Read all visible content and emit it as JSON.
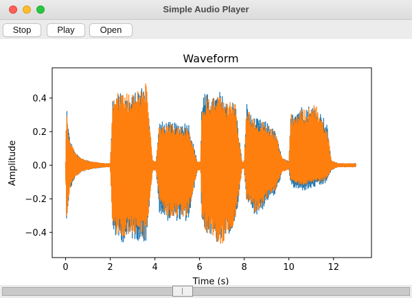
{
  "window": {
    "title": "Simple Audio Player"
  },
  "toolbar": {
    "buttons": [
      {
        "label": "Stop"
      },
      {
        "label": "Play"
      },
      {
        "label": "Open"
      }
    ]
  },
  "chart_data": {
    "type": "line",
    "title": "Waveform",
    "xlabel": "Time (s)",
    "ylabel": "Amplitude",
    "xlim": [
      -0.6,
      13.7
    ],
    "ylim": [
      -0.55,
      0.58
    ],
    "xticks": [
      0,
      2,
      4,
      6,
      8,
      10,
      12
    ],
    "yticks": [
      -0.4,
      -0.2,
      0.0,
      0.2,
      0.4
    ],
    "ytick_labels": [
      "−0.4",
      "−0.2",
      "0.0",
      "0.2",
      "0.4"
    ],
    "grid": false,
    "series": [
      {
        "color": "#1f77b4",
        "envelope_t": [
          0,
          0.05,
          0.1,
          0.2,
          0.4,
          0.7,
          1.2,
          1.8,
          2.0,
          2.1,
          2.3,
          2.6,
          2.9,
          3.3,
          3.6,
          3.9,
          4.05,
          4.2,
          4.5,
          5.0,
          5.5,
          5.9,
          6.05,
          6.1,
          6.3,
          6.6,
          6.9,
          7.2,
          7.6,
          7.9,
          8.0,
          8.1,
          8.3,
          8.5,
          8.8,
          9.1,
          9.4,
          9.7,
          9.9,
          10.0,
          10.1,
          10.4,
          10.8,
          11.2,
          11.5,
          11.7,
          11.9,
          12.2,
          12.6,
          13.0
        ],
        "envelope_top": [
          0.02,
          0.37,
          0.25,
          0.15,
          0.08,
          0.04,
          0.02,
          0.01,
          0.01,
          0.38,
          0.45,
          0.42,
          0.4,
          0.46,
          0.48,
          0.03,
          0.02,
          0.26,
          0.26,
          0.25,
          0.26,
          0.02,
          0.02,
          0.42,
          0.43,
          0.4,
          0.44,
          0.38,
          0.38,
          0.02,
          0.02,
          0.38,
          0.3,
          0.28,
          0.27,
          0.25,
          0.2,
          0.04,
          0.03,
          0.02,
          0.34,
          0.35,
          0.36,
          0.35,
          0.3,
          0.25,
          0.03,
          0.01,
          0.01,
          0.01
        ],
        "envelope_bottom": [
          -0.02,
          -0.36,
          -0.25,
          -0.15,
          -0.08,
          -0.04,
          -0.02,
          -0.01,
          -0.01,
          -0.38,
          -0.45,
          -0.46,
          -0.44,
          -0.45,
          -0.46,
          -0.03,
          -0.03,
          -0.28,
          -0.33,
          -0.33,
          -0.34,
          -0.03,
          -0.03,
          -0.36,
          -0.4,
          -0.44,
          -0.48,
          -0.42,
          -0.38,
          -0.02,
          -0.02,
          -0.24,
          -0.25,
          -0.3,
          -0.27,
          -0.2,
          -0.18,
          -0.04,
          -0.03,
          -0.02,
          -0.13,
          -0.15,
          -0.15,
          -0.13,
          -0.12,
          -0.1,
          -0.03,
          -0.01,
          -0.01,
          -0.01
        ]
      },
      {
        "color": "#ff7f0e",
        "envelope_t": [
          0,
          0.05,
          0.1,
          0.2,
          0.4,
          0.7,
          1.2,
          1.8,
          2.0,
          2.1,
          2.3,
          2.6,
          2.9,
          3.3,
          3.6,
          3.9,
          4.05,
          4.2,
          4.5,
          5.0,
          5.5,
          5.9,
          6.05,
          6.1,
          6.3,
          6.6,
          6.9,
          7.2,
          7.6,
          7.9,
          8.0,
          8.1,
          8.3,
          8.5,
          8.8,
          9.1,
          9.4,
          9.7,
          9.9,
          10.0,
          10.1,
          10.4,
          10.8,
          11.2,
          11.5,
          11.7,
          11.9,
          12.2,
          12.6,
          13.0
        ],
        "envelope_top": [
          0.02,
          0.38,
          0.25,
          0.15,
          0.08,
          0.04,
          0.02,
          0.01,
          0.01,
          0.38,
          0.45,
          0.44,
          0.42,
          0.48,
          0.5,
          0.03,
          0.02,
          0.25,
          0.25,
          0.24,
          0.23,
          0.02,
          0.02,
          0.37,
          0.42,
          0.41,
          0.44,
          0.37,
          0.38,
          0.02,
          0.02,
          0.37,
          0.29,
          0.27,
          0.26,
          0.24,
          0.2,
          0.04,
          0.03,
          0.02,
          0.32,
          0.33,
          0.34,
          0.36,
          0.28,
          0.24,
          0.03,
          0.01,
          0.01,
          0.01
        ],
        "envelope_bottom": [
          -0.02,
          -0.37,
          -0.25,
          -0.15,
          -0.08,
          -0.04,
          -0.02,
          -0.01,
          -0.01,
          -0.36,
          -0.42,
          -0.44,
          -0.4,
          -0.42,
          -0.44,
          -0.03,
          -0.03,
          -0.22,
          -0.3,
          -0.31,
          -0.3,
          -0.03,
          -0.03,
          -0.34,
          -0.4,
          -0.44,
          -0.5,
          -0.42,
          -0.36,
          -0.02,
          -0.02,
          -0.22,
          -0.24,
          -0.28,
          -0.24,
          -0.18,
          -0.15,
          -0.04,
          -0.03,
          -0.02,
          -0.1,
          -0.12,
          -0.12,
          -0.1,
          -0.1,
          -0.08,
          -0.03,
          -0.01,
          -0.01,
          -0.01
        ]
      }
    ]
  },
  "slider": {
    "position_fraction": 0.44
  }
}
